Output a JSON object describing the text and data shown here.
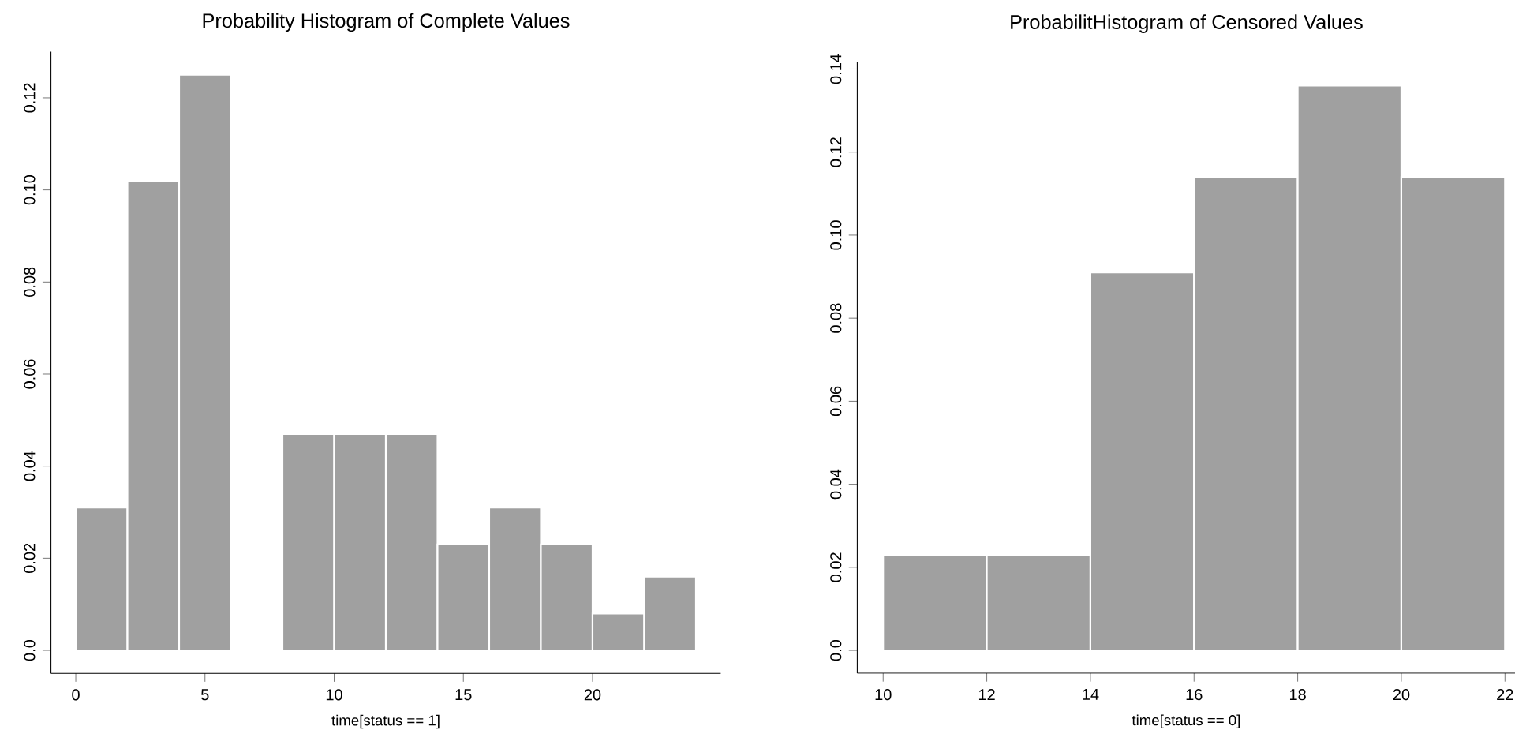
{
  "chart_data": [
    {
      "type": "histogram",
      "title": "Probability Histogram of Complete Values",
      "xlabel": "time[status == 1]",
      "bins": [
        0,
        2,
        4,
        6,
        8,
        10,
        12,
        14,
        16,
        18,
        20,
        22,
        24
      ],
      "values": [
        0.031,
        0.102,
        0.125,
        0,
        0.047,
        0.047,
        0.047,
        0.023,
        0.031,
        0.023,
        0.008,
        0.016
      ],
      "color": "#a0a0a0",
      "xlim": [
        -0.96,
        24.96
      ],
      "ylim": [
        -0.005,
        0.13
      ],
      "xticks": [
        0,
        5,
        10,
        15,
        20
      ],
      "yticks": [
        {
          "value": 0,
          "label": "0.0"
        },
        {
          "value": 0.02,
          "label": "0.02"
        },
        {
          "value": 0.04,
          "label": "0.04"
        },
        {
          "value": 0.06,
          "label": "0.06"
        },
        {
          "value": 0.08,
          "label": "0.08"
        },
        {
          "value": 0.1,
          "label": "0.10"
        },
        {
          "value": 0.12,
          "label": "0.12"
        }
      ],
      "grid": false
    },
    {
      "type": "histogram",
      "title": "ProbabilitHistogram of Censored Values",
      "xlabel": "time[status == 0]",
      "bins": [
        10,
        12,
        14,
        16,
        18,
        20,
        22
      ],
      "values": [
        0.023,
        0.023,
        0.091,
        0.114,
        0.136,
        0.114
      ],
      "color": "#a0a0a0",
      "xlim": [
        9.5,
        22.2
      ],
      "ylim": [
        -0.0055,
        0.1418
      ],
      "xticks": [
        10,
        12,
        14,
        16,
        18,
        20,
        22
      ],
      "yticks": [
        {
          "value": 0,
          "label": "0.0"
        },
        {
          "value": 0.02,
          "label": "0.02"
        },
        {
          "value": 0.04,
          "label": "0.04"
        },
        {
          "value": 0.06,
          "label": "0.06"
        },
        {
          "value": 0.08,
          "label": "0.08"
        },
        {
          "value": 0.1,
          "label": "0.10"
        },
        {
          "value": 0.12,
          "label": "0.12"
        },
        {
          "value": 0.14,
          "label": "0.14"
        }
      ],
      "grid": false
    }
  ]
}
